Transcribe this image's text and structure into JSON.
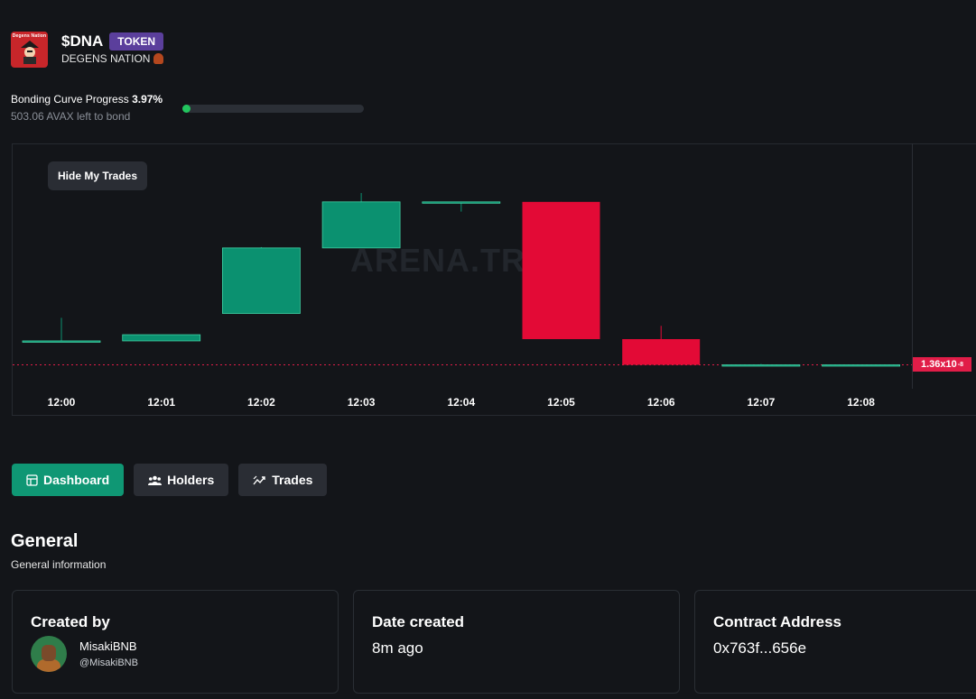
{
  "token": {
    "logo_text": "Degens Nation",
    "ticker": "$DNA",
    "badge": "TOKEN",
    "name": "DEGENS NATION"
  },
  "bonding": {
    "label": "Bonding Curve Progress",
    "percent_text": "3.97%",
    "progress_fraction": 0.0397,
    "left_to_bond": "503.06 AVAX left to bond"
  },
  "chart": {
    "hide_button": "Hide My Trades",
    "watermark": "ARENA.TRADE",
    "price_tag": "1.36x10",
    "price_tag_exp": "-8"
  },
  "chart_data": {
    "type": "candlestick",
    "categories": [
      "12:00",
      "12:01",
      "12:02",
      "12:03",
      "12:04",
      "12:05",
      "12:06",
      "12:07",
      "12:08"
    ],
    "series": [
      {
        "name": "open",
        "values": [
          1.63,
          1.63,
          1.94,
          2.68,
          3.2,
          3.2,
          1.65,
          1.36,
          1.36
        ]
      },
      {
        "name": "high",
        "values": [
          1.89,
          1.7,
          2.69,
          3.3,
          3.2,
          3.2,
          1.8,
          1.37,
          1.36
        ]
      },
      {
        "name": "low",
        "values": [
          1.63,
          1.63,
          1.94,
          2.68,
          3.09,
          1.65,
          1.36,
          1.36,
          1.36
        ]
      },
      {
        "name": "close",
        "values": [
          1.63,
          1.7,
          2.68,
          3.2,
          3.2,
          1.65,
          1.36,
          1.36,
          1.36
        ]
      }
    ],
    "last_price": 1.36,
    "unit_exponent": -8,
    "ylim": [
      1.1,
      3.85
    ],
    "colors": {
      "up": "#0b9170",
      "down": "#e30a36",
      "price_line": "#e11d48"
    }
  },
  "tabs": [
    {
      "label": "Dashboard",
      "icon": "dashboard-icon",
      "active": true
    },
    {
      "label": "Holders",
      "icon": "holders-icon",
      "active": false
    },
    {
      "label": "Trades",
      "icon": "trades-icon",
      "active": false
    }
  ],
  "general": {
    "title": "General",
    "subtitle": "General information"
  },
  "cards": {
    "created_by": {
      "title": "Created by",
      "name": "MisakiBNB",
      "handle": "@MisakiBNB"
    },
    "date_created": {
      "title": "Date created",
      "value": "8m ago"
    },
    "contract": {
      "title": "Contract Address",
      "value": "0x763f...656e"
    }
  }
}
